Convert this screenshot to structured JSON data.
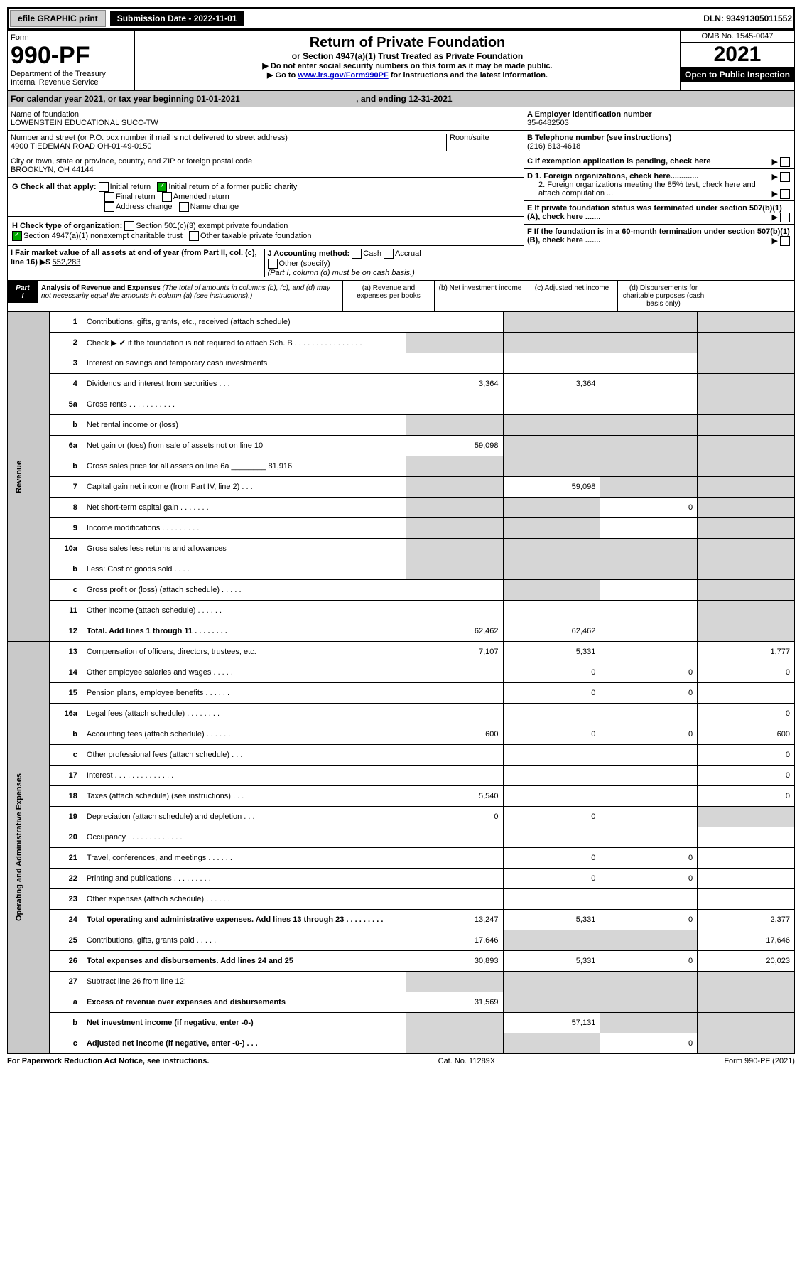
{
  "topbar": {
    "efile": "efile GRAPHIC print",
    "sub_label": "Submission Date - 2022-11-01",
    "dln": "DLN: 93491305011552"
  },
  "header": {
    "form_label": "Form",
    "form_num": "990-PF",
    "dept1": "Department of the Treasury",
    "dept2": "Internal Revenue Service",
    "title": "Return of Private Foundation",
    "subtitle": "or Section 4947(a)(1) Trust Treated as Private Foundation",
    "bullet1": "▶ Do not enter social security numbers on this form as it may be made public.",
    "bullet2_prefix": "▶ Go to ",
    "bullet2_link": "www.irs.gov/Form990PF",
    "bullet2_suffix": " for instructions and the latest information.",
    "omb": "OMB No. 1545-0047",
    "year": "2021",
    "inspection": "Open to Public Inspection"
  },
  "calendar": {
    "text": "For calendar year 2021, or tax year beginning 01-01-2021",
    "end": ", and ending 12-31-2021"
  },
  "info": {
    "name_label": "Name of foundation",
    "name": "LOWENSTEIN EDUCATIONAL SUCC-TW",
    "addr_label": "Number and street (or P.O. box number if mail is not delivered to street address)",
    "addr": "4900 TIEDEMAN ROAD OH-01-49-0150",
    "room_label": "Room/suite",
    "city_label": "City or town, state or province, country, and ZIP or foreign postal code",
    "city": "BROOKLYN, OH  44144",
    "a_label": "A Employer identification number",
    "a_val": "35-6482503",
    "b_label": "B Telephone number (see instructions)",
    "b_val": "(216) 813-4618",
    "c_label": "C If exemption application is pending, check here",
    "d1": "D 1. Foreign organizations, check here.............",
    "d2": "2. Foreign organizations meeting the 85% test, check here and attach computation ...",
    "e_label": "E  If private foundation status was terminated under section 507(b)(1)(A), check here .......",
    "f_label": "F  If the foundation is in a 60-month termination under section 507(b)(1)(B), check here .......",
    "g_label": "G Check all that apply:",
    "g_opts": [
      "Initial return",
      "Initial return of a former public charity",
      "Final return",
      "Amended return",
      "Address change",
      "Name change"
    ],
    "h_label": "H Check type of organization:",
    "h1": "Section 501(c)(3) exempt private foundation",
    "h2": "Section 4947(a)(1) nonexempt charitable trust",
    "h3": "Other taxable private foundation",
    "i_label": "I Fair market value of all assets at end of year (from Part II, col. (c), line 16) ▶$",
    "i_val": "552,283",
    "j_label": "J Accounting method:",
    "j_cash": "Cash",
    "j_accrual": "Accrual",
    "j_other": "Other (specify)",
    "j_note": "(Part I, column (d) must be on cash basis.)"
  },
  "partI": {
    "label": "Part I",
    "title": "Analysis of Revenue and Expenses",
    "note": "(The total of amounts in columns (b), (c), and (d) may not necessarily equal the amounts in column (a) (see instructions).)",
    "col_a": "(a)   Revenue and expenses per books",
    "col_b": "(b)   Net investment income",
    "col_c": "(c)   Adjusted net income",
    "col_d": "(d)  Disbursements for charitable purposes (cash basis only)"
  },
  "side": {
    "revenue": "Revenue",
    "expenses": "Operating and Administrative Expenses"
  },
  "rows": [
    {
      "n": "1",
      "d": "Contributions, gifts, grants, etc., received (attach schedule)",
      "a": "",
      "b": "s",
      "c": "s",
      "dd": "s"
    },
    {
      "n": "2",
      "d": "Check ▶ ✔ if the foundation is not required to attach Sch. B   .  .  .  .  .  .  .  .  .  .  .  .  .  .  .  .",
      "a": "s",
      "b": "s",
      "c": "s",
      "dd": "s"
    },
    {
      "n": "3",
      "d": "Interest on savings and temporary cash investments",
      "a": "",
      "b": "",
      "c": "",
      "dd": "s"
    },
    {
      "n": "4",
      "d": "Dividends and interest from securities   .   .   .",
      "a": "3,364",
      "b": "3,364",
      "c": "",
      "dd": "s"
    },
    {
      "n": "5a",
      "d": "Gross rents   .   .   .   .   .   .   .   .   .   .   .",
      "a": "",
      "b": "",
      "c": "",
      "dd": "s"
    },
    {
      "n": "b",
      "d": "Net rental income or (loss)  ",
      "a": "s",
      "b": "s",
      "c": "s",
      "dd": "s"
    },
    {
      "n": "6a",
      "d": "Net gain or (loss) from sale of assets not on line 10",
      "a": "59,098",
      "b": "s",
      "c": "s",
      "dd": "s"
    },
    {
      "n": "b",
      "d": "Gross sales price for all assets on line 6a ________ 81,916",
      "a": "s",
      "b": "s",
      "c": "s",
      "dd": "s"
    },
    {
      "n": "7",
      "d": "Capital gain net income (from Part IV, line 2)   .   .   .",
      "a": "s",
      "b": "59,098",
      "c": "s",
      "dd": "s"
    },
    {
      "n": "8",
      "d": "Net short-term capital gain   .   .   .   .   .   .   .",
      "a": "s",
      "b": "s",
      "c": "0",
      "dd": "s"
    },
    {
      "n": "9",
      "d": "Income modifications  .   .   .   .   .   .   .   .   .",
      "a": "s",
      "b": "s",
      "c": "",
      "dd": "s"
    },
    {
      "n": "10a",
      "d": "Gross sales less returns and allowances",
      "a": "s",
      "b": "s",
      "c": "s",
      "dd": "s"
    },
    {
      "n": "b",
      "d": "Less: Cost of goods sold   .   .   .   .",
      "a": "s",
      "b": "s",
      "c": "s",
      "dd": "s"
    },
    {
      "n": "c",
      "d": "Gross profit or (loss) (attach schedule)   .   .   .   .   .",
      "a": "",
      "b": "s",
      "c": "",
      "dd": "s"
    },
    {
      "n": "11",
      "d": "Other income (attach schedule)   .   .   .   .   .   .",
      "a": "",
      "b": "",
      "c": "",
      "dd": "s"
    },
    {
      "n": "12",
      "d": "Total. Add lines 1 through 11   .   .   .   .   .   .   .   .",
      "bold": true,
      "a": "62,462",
      "b": "62,462",
      "c": "",
      "dd": "s"
    },
    {
      "n": "13",
      "d": "Compensation of officers, directors, trustees, etc.",
      "a": "7,107",
      "b": "5,331",
      "c": "",
      "dd": "1,777"
    },
    {
      "n": "14",
      "d": "Other employee salaries and wages   .   .   .   .   .",
      "a": "",
      "b": "0",
      "c": "0",
      "dd": "0"
    },
    {
      "n": "15",
      "d": "Pension plans, employee benefits   .   .   .   .   .   .",
      "a": "",
      "b": "0",
      "c": "0",
      "dd": ""
    },
    {
      "n": "16a",
      "d": "Legal fees (attach schedule)  .   .   .   .   .   .   .   .",
      "a": "",
      "b": "",
      "c": "",
      "dd": "0"
    },
    {
      "n": "b",
      "d": "Accounting fees (attach schedule)  .   .   .   .   .   .",
      "a": "600",
      "b": "0",
      "c": "0",
      "dd": "600"
    },
    {
      "n": "c",
      "d": "Other professional fees (attach schedule)   .   .   .",
      "a": "",
      "b": "",
      "c": "",
      "dd": "0"
    },
    {
      "n": "17",
      "d": "Interest  .   .   .   .   .   .   .   .   .   .   .   .   .   .",
      "a": "",
      "b": "",
      "c": "",
      "dd": "0"
    },
    {
      "n": "18",
      "d": "Taxes (attach schedule) (see instructions)   .   .   .",
      "a": "5,540",
      "b": "",
      "c": "",
      "dd": "0"
    },
    {
      "n": "19",
      "d": "Depreciation (attach schedule) and depletion   .   .   .",
      "a": "0",
      "b": "0",
      "c": "",
      "dd": "s"
    },
    {
      "n": "20",
      "d": "Occupancy .   .   .   .   .   .   .   .   .   .   .   .   .",
      "a": "",
      "b": "",
      "c": "",
      "dd": ""
    },
    {
      "n": "21",
      "d": "Travel, conferences, and meetings  .   .   .   .   .   .",
      "a": "",
      "b": "0",
      "c": "0",
      "dd": ""
    },
    {
      "n": "22",
      "d": "Printing and publications  .   .   .   .   .   .   .   .   .",
      "a": "",
      "b": "0",
      "c": "0",
      "dd": ""
    },
    {
      "n": "23",
      "d": "Other expenses (attach schedule)  .   .   .   .   .   .",
      "a": "",
      "b": "",
      "c": "",
      "dd": ""
    },
    {
      "n": "24",
      "d": "Total operating and administrative expenses. Add lines 13 through 23   .   .   .   .   .   .   .   .   .",
      "bold": true,
      "a": "13,247",
      "b": "5,331",
      "c": "0",
      "dd": "2,377"
    },
    {
      "n": "25",
      "d": "Contributions, gifts, grants paid   .   .   .   .   .",
      "a": "17,646",
      "b": "s",
      "c": "s",
      "dd": "17,646"
    },
    {
      "n": "26",
      "d": "Total expenses and disbursements. Add lines 24 and 25",
      "bold": true,
      "a": "30,893",
      "b": "5,331",
      "c": "0",
      "dd": "20,023"
    },
    {
      "n": "27",
      "d": "Subtract line 26 from line 12:",
      "a": "s",
      "b": "s",
      "c": "s",
      "dd": "s"
    },
    {
      "n": "a",
      "d": "Excess of revenue over expenses and disbursements",
      "bold": true,
      "a": "31,569",
      "b": "s",
      "c": "s",
      "dd": "s"
    },
    {
      "n": "b",
      "d": "Net investment income (if negative, enter -0-)",
      "bold": true,
      "a": "s",
      "b": "57,131",
      "c": "s",
      "dd": "s"
    },
    {
      "n": "c",
      "d": "Adjusted net income (if negative, enter -0-)   .   .   .",
      "bold": true,
      "a": "s",
      "b": "s",
      "c": "0",
      "dd": "s"
    }
  ],
  "footer": {
    "left": "For Paperwork Reduction Act Notice, see instructions.",
    "center": "Cat. No. 11289X",
    "right": "Form 990-PF (2021)"
  }
}
